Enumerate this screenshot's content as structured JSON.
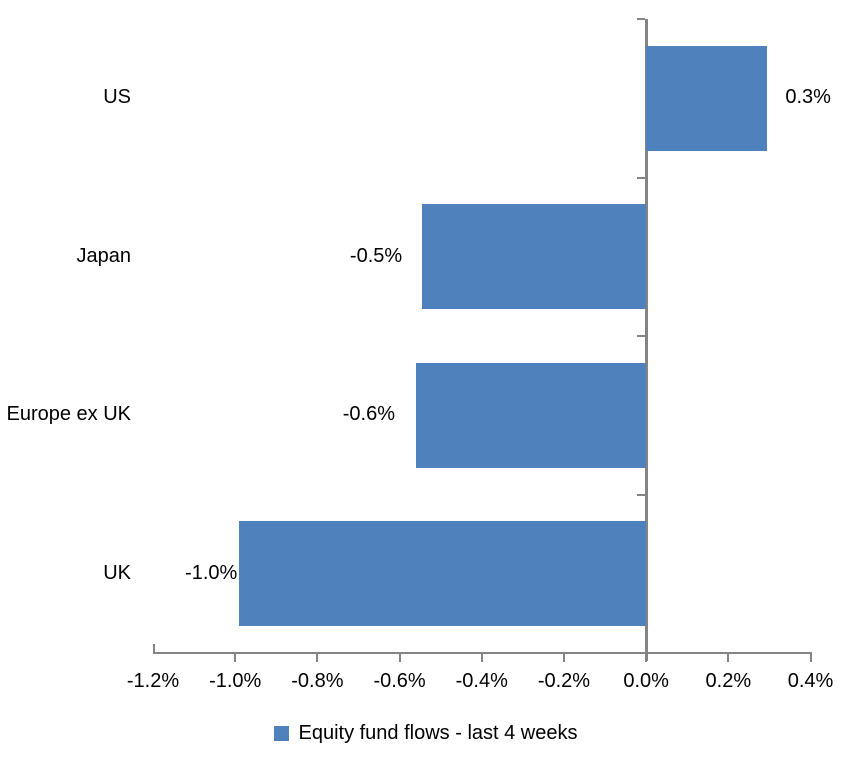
{
  "chart_data": {
    "type": "bar",
    "orientation": "horizontal",
    "title": "",
    "xlabel": "",
    "ylabel": "",
    "grid": false,
    "categories": [
      "US",
      "Japan",
      "Europe ex UK",
      "UK"
    ],
    "values": [
      0.3,
      -0.5,
      -0.6,
      -1.0
    ],
    "plotted_values": [
      0.295,
      -0.545,
      -0.56,
      -0.99
    ],
    "data_labels": [
      "0.3%",
      "-0.5%",
      "-0.6%",
      "-1.0%"
    ],
    "x_axis": {
      "min": -1.2,
      "max": 0.4,
      "step": 0.2,
      "tick_values": [
        -1.2,
        -1.0,
        -0.8,
        -0.6,
        -0.4,
        -0.2,
        0.0,
        0.2,
        0.4
      ],
      "tick_labels": [
        "-1.2%",
        "-1.0%",
        "-0.8%",
        "-0.6%",
        "-0.4%",
        "-0.2%",
        "0.0%",
        "0.2%",
        "0.4%"
      ]
    },
    "legend": {
      "position": "bottom",
      "label": "Equity fund flows - last 4 weeks"
    },
    "colors": {
      "bar": "#4F81BD",
      "axis": "#848484",
      "text": "#000000",
      "background": "#FFFFFF"
    }
  }
}
